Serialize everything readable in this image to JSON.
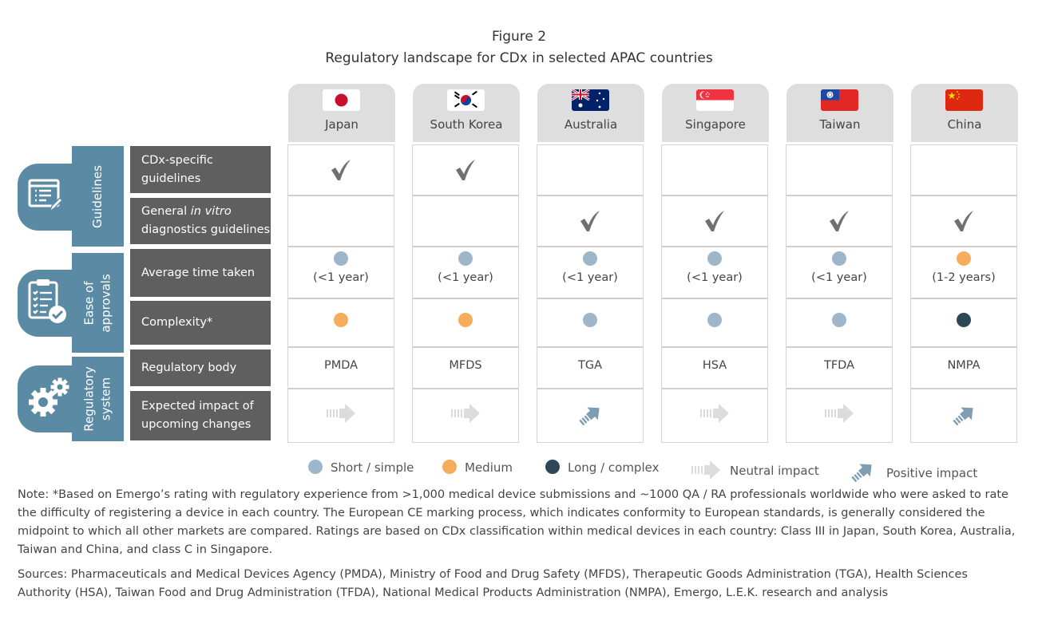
{
  "figure": {
    "label": "Figure 2",
    "title": "Regulatory landscape for CDx in selected APAC countries"
  },
  "groups": [
    {
      "label": "Guidelines",
      "icon": "document-edit-icon"
    },
    {
      "label": "Ease of approvals",
      "icon": "clipboard-check-icon"
    },
    {
      "label": "Regulatory system",
      "icon": "gears-icon"
    }
  ],
  "rows": [
    {
      "label_pre": "CDx-specific guidelines",
      "label_italic": "",
      "label_post": ""
    },
    {
      "label_pre": "General ",
      "label_italic": "in vitro",
      "label_post": " diagnostics guidelines"
    },
    {
      "label_pre": "Average time taken",
      "label_italic": "",
      "label_post": ""
    },
    {
      "label_pre": "Complexity*",
      "label_italic": "",
      "label_post": ""
    },
    {
      "label_pre": "Regulatory body",
      "label_italic": "",
      "label_post": ""
    },
    {
      "label_pre": "Expected impact of upcoming changes",
      "label_italic": "",
      "label_post": ""
    }
  ],
  "countries": [
    {
      "name": "Japan",
      "flag": "japan",
      "cdx_specific": true,
      "general_ivd": false,
      "avg_time": "short",
      "avg_time_text": "(<1 year)",
      "complexity": "medium",
      "body": "PMDA",
      "impact": "neutral"
    },
    {
      "name": "South Korea",
      "flag": "south-korea",
      "cdx_specific": true,
      "general_ivd": false,
      "avg_time": "short",
      "avg_time_text": "(<1 year)",
      "complexity": "medium",
      "body": "MFDS",
      "impact": "neutral"
    },
    {
      "name": "Australia",
      "flag": "australia",
      "cdx_specific": false,
      "general_ivd": true,
      "avg_time": "short",
      "avg_time_text": "(<1 year)",
      "complexity": "short",
      "body": "TGA",
      "impact": "positive"
    },
    {
      "name": "Singapore",
      "flag": "singapore",
      "cdx_specific": false,
      "general_ivd": true,
      "avg_time": "short",
      "avg_time_text": "(<1 year)",
      "complexity": "short",
      "body": "HSA",
      "impact": "neutral"
    },
    {
      "name": "Taiwan",
      "flag": "taiwan",
      "cdx_specific": false,
      "general_ivd": true,
      "avg_time": "short",
      "avg_time_text": "(<1 year)",
      "complexity": "short",
      "body": "TFDA",
      "impact": "neutral"
    },
    {
      "name": "China",
      "flag": "china",
      "cdx_specific": false,
      "general_ivd": true,
      "avg_time": "medium",
      "avg_time_text": "(1-2 years)",
      "complexity": "long",
      "body": "NMPA",
      "impact": "positive"
    }
  ],
  "colors": {
    "short": "#9db6c9",
    "medium": "#f5ad5c",
    "long": "#2d4757",
    "group": "#5b8aa5",
    "label_bg": "#5f5f5f",
    "check": "#707070",
    "neutral_arrow": "#dcdcdc",
    "positive_arrow": "#7f9db2"
  },
  "legend": {
    "short": "Short / simple",
    "medium": "Medium",
    "long": "Long / complex",
    "neutral": "Neutral impact",
    "positive": "Positive impact"
  },
  "note": "Note: *Based on Emergo’s rating with regulatory experience from >1,000 medical device submissions and ~1000 QA / RA professionals worldwide who were asked to rate the difficulty of registering a device in each country. The European CE marking process, which indicates conformity to European standards, is generally considered the midpoint to which all other markets are compared. Ratings are based on CDx classification within medical devices in each country: Class III in Japan, South Korea, Australia, Taiwan and China, and class C in Singapore.",
  "sources": "Sources: Pharmaceuticals and Medical Devices Agency (PMDA), Ministry of Food and Drug Safety (MFDS), Therapeutic Goods Administration (TGA), Health Sciences Authority (HSA), Taiwan Food and Drug Administration (TFDA), National Medical Products Administration (NMPA), Emergo, L.E.K. research and analysis"
}
